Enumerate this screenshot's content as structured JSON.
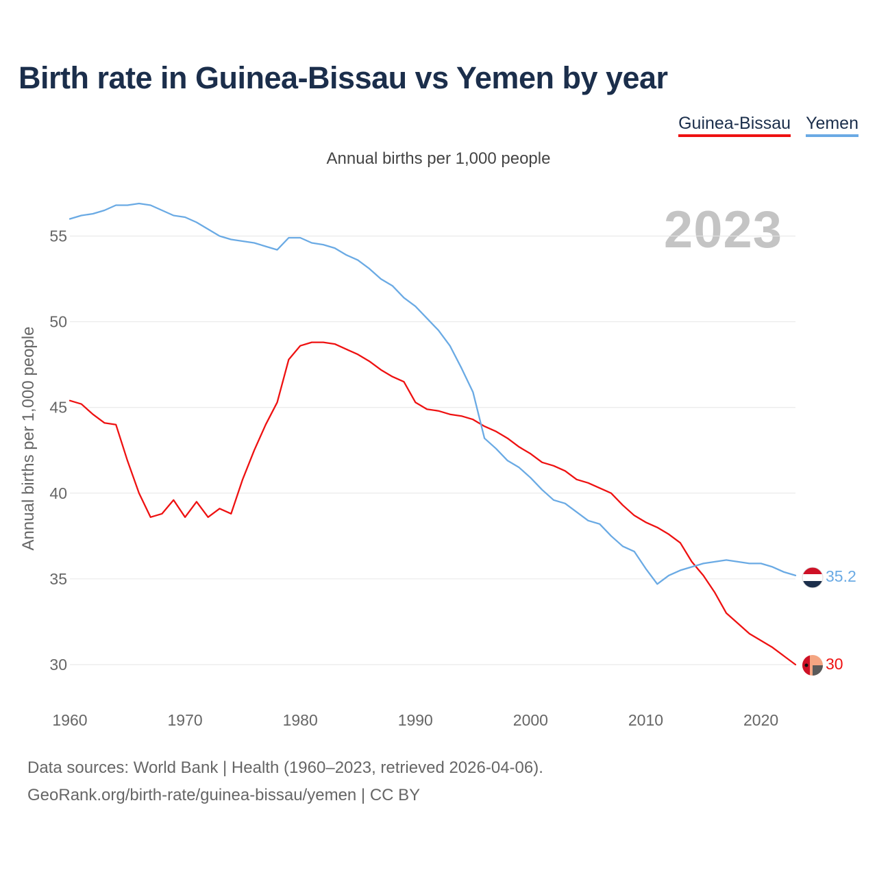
{
  "title": "Birth rate in Guinea-Bissau vs Yemen by year",
  "legend": [
    {
      "name": "Guinea-Bissau",
      "color": "#ee1111"
    },
    {
      "name": "Yemen",
      "color": "#6aaae4"
    }
  ],
  "year_label": "2023",
  "source_line1": "Data sources: World Bank | Health (1960–2023, retrieved 2026-04-06).",
  "source_line2": "GeoRank.org/birth-rate/guinea-bissau/yemen | CC BY",
  "chart_data": {
    "type": "line",
    "title": "Birth rate in Guinea-Bissau vs Yemen by year",
    "subtitle": "Annual births per 1,000 people",
    "xlabel": "",
    "ylabel": "Annual births per 1,000 people",
    "xlim": [
      1960,
      2023
    ],
    "ylim": [
      28,
      57.5
    ],
    "x_ticks": [
      1960,
      1970,
      1980,
      1990,
      2000,
      2010,
      2020
    ],
    "y_ticks": [
      30,
      35,
      40,
      45,
      50,
      55
    ],
    "grid": true,
    "legend_position": "top-right",
    "end_labels": [
      "30",
      "35.2"
    ],
    "x": [
      1960,
      1961,
      1962,
      1963,
      1964,
      1965,
      1966,
      1967,
      1968,
      1969,
      1970,
      1971,
      1972,
      1973,
      1974,
      1975,
      1976,
      1977,
      1978,
      1979,
      1980,
      1981,
      1982,
      1983,
      1984,
      1985,
      1986,
      1987,
      1988,
      1989,
      1990,
      1991,
      1992,
      1993,
      1994,
      1995,
      1996,
      1997,
      1998,
      1999,
      2000,
      2001,
      2002,
      2003,
      2004,
      2005,
      2006,
      2007,
      2008,
      2009,
      2010,
      2011,
      2012,
      2013,
      2014,
      2015,
      2016,
      2017,
      2018,
      2019,
      2020,
      2021,
      2022,
      2023
    ],
    "series": [
      {
        "name": "Guinea-Bissau",
        "color": "#ee1111",
        "end_label": "30",
        "values": [
          45.4,
          45.2,
          44.6,
          44.1,
          44.0,
          41.9,
          40.0,
          38.6,
          38.8,
          39.6,
          38.6,
          39.5,
          38.6,
          39.1,
          38.8,
          40.8,
          42.5,
          44.0,
          45.3,
          47.8,
          48.6,
          48.8,
          48.8,
          48.7,
          48.4,
          48.1,
          47.7,
          47.2,
          46.8,
          46.5,
          45.3,
          44.9,
          44.8,
          44.6,
          44.5,
          44.3,
          43.9,
          43.6,
          43.2,
          42.7,
          42.3,
          41.8,
          41.6,
          41.3,
          40.8,
          40.6,
          40.3,
          40.0,
          39.3,
          38.7,
          38.3,
          38.0,
          37.6,
          37.1,
          36.0,
          35.2,
          34.2,
          33.0,
          32.4,
          31.8,
          31.4,
          31.0,
          30.5,
          30.0
        ]
      },
      {
        "name": "Yemen",
        "color": "#6aaae4",
        "end_label": "35.2",
        "values": [
          56.0,
          56.2,
          56.3,
          56.5,
          56.8,
          56.8,
          56.9,
          56.8,
          56.5,
          56.2,
          56.1,
          55.8,
          55.4,
          55.0,
          54.8,
          54.7,
          54.6,
          54.4,
          54.2,
          54.9,
          54.9,
          54.6,
          54.5,
          54.3,
          53.9,
          53.6,
          53.1,
          52.5,
          52.1,
          51.4,
          50.9,
          50.2,
          49.5,
          48.6,
          47.3,
          45.9,
          43.2,
          42.6,
          41.9,
          41.5,
          40.9,
          40.2,
          39.6,
          39.4,
          38.9,
          38.4,
          38.2,
          37.5,
          36.9,
          36.6,
          35.6,
          34.7,
          35.2,
          35.5,
          35.7,
          35.9,
          36.0,
          36.1,
          36.0,
          35.9,
          35.9,
          35.7,
          35.4,
          35.2
        ]
      }
    ]
  }
}
